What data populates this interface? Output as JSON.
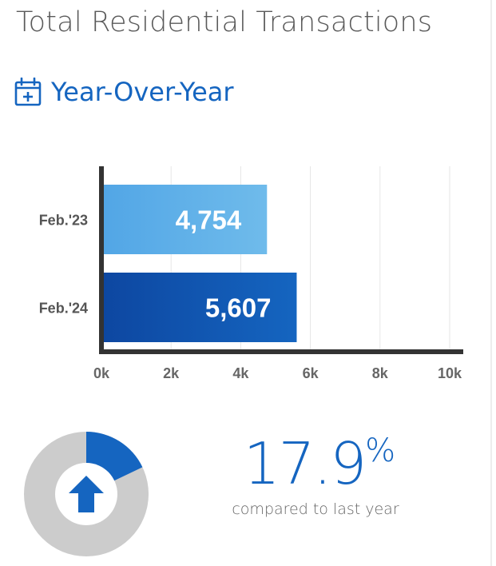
{
  "header": {
    "title": "Total Residential Transactions",
    "subtitle": "Year-Over-Year",
    "subtitle_icon": "calendar-plus-icon"
  },
  "chart_data": {
    "type": "bar",
    "orientation": "horizontal",
    "categories": [
      "Feb.'23",
      "Feb.'24"
    ],
    "values": [
      4754,
      5607
    ],
    "value_labels": [
      "4,754",
      "5,607"
    ],
    "xlim": [
      0,
      10000
    ],
    "x_ticks": [
      0,
      2000,
      4000,
      6000,
      8000,
      10000
    ],
    "x_tick_labels": [
      "0k",
      "2k",
      "4k",
      "6k",
      "8k",
      "10k"
    ],
    "grid": true,
    "bar_colors": [
      [
        "#52a6e6",
        "#6fbbeb"
      ],
      [
        "#0d47a1",
        "#1565c0"
      ]
    ]
  },
  "change": {
    "percent_value": "17.9",
    "percent_sign": "%",
    "fraction": 0.179,
    "direction": "up",
    "caption": "compared to last year",
    "icon": "arrow-up-icon"
  },
  "colors": {
    "accent": "#1565c0",
    "donut_bg": "#cccccc",
    "axis": "#333333"
  }
}
